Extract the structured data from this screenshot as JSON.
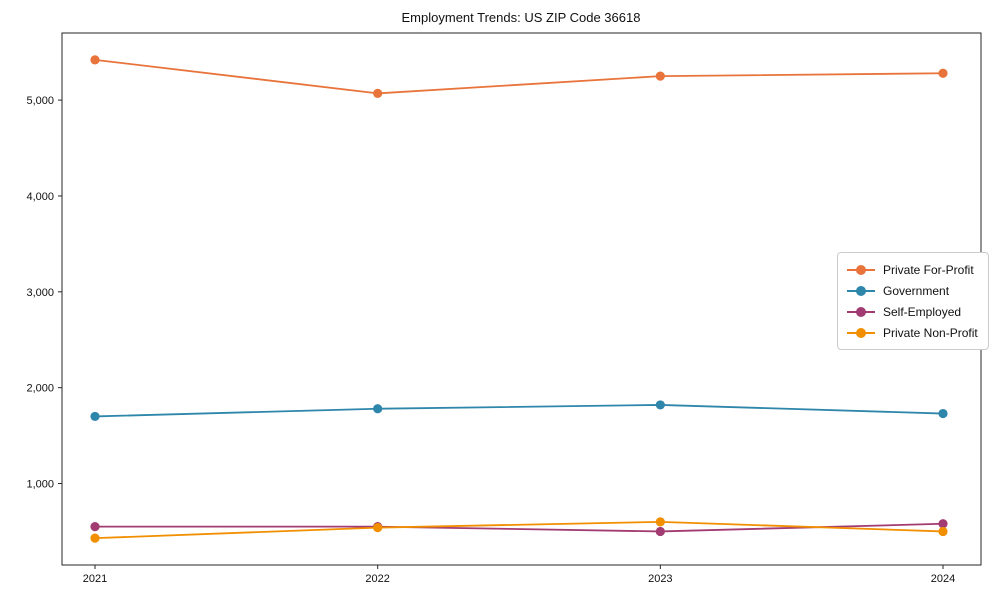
{
  "title": "Employment Trends: US ZIP Code 36618",
  "chart_data": {
    "type": "line",
    "title": "Employment Trends: US ZIP Code 36618",
    "xlabel": "",
    "ylabel": "",
    "categories": [
      "2021",
      "2022",
      "2023",
      "2024"
    ],
    "x": [
      2021,
      2022,
      2023,
      2024
    ],
    "series": [
      {
        "name": "Private For-Profit",
        "color": "#E8743B",
        "values": [
          5420,
          5070,
          5250,
          5280
        ]
      },
      {
        "name": "Government",
        "color": "#2E86AB",
        "values": [
          1700,
          1780,
          1820,
          1730
        ]
      },
      {
        "name": "Self-Employed",
        "color": "#A23B72",
        "values": [
          550,
          550,
          500,
          580
        ]
      },
      {
        "name": "Private Non-Profit",
        "color": "#F18F01",
        "values": [
          430,
          540,
          600,
          500
        ]
      }
    ],
    "ylim": [
      150,
      5700
    ],
    "yticks": [
      1000,
      2000,
      3000,
      4000,
      5000
    ],
    "ytick_labels": [
      "1,000",
      "2,000",
      "3,000",
      "4,000",
      "5,000"
    ],
    "grid": false,
    "legend_position": "center right",
    "marker": "circle",
    "axis_color": "#262626",
    "tick_label_color": "#111111"
  }
}
